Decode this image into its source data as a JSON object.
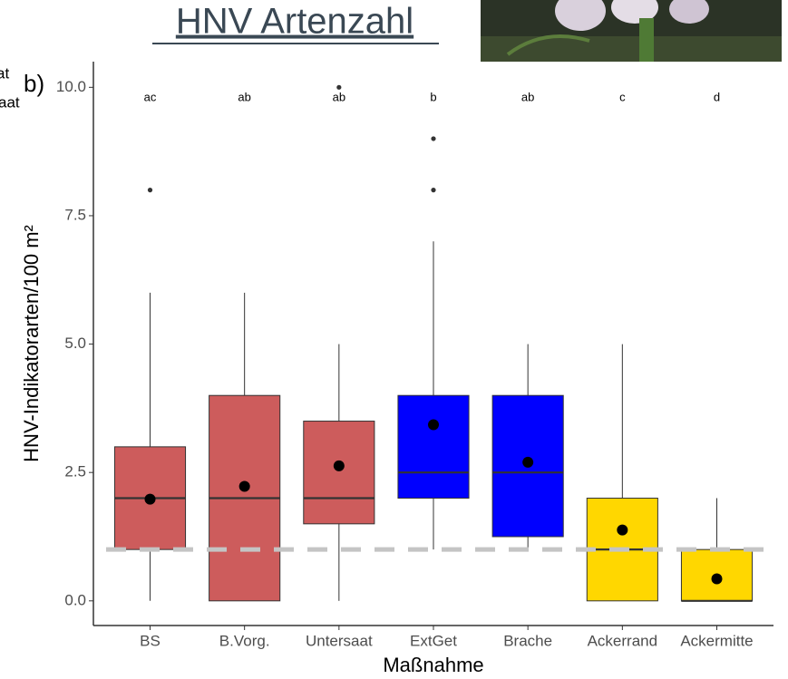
{
  "chart_data": {
    "type": "box",
    "title": "HNV Artenzahl",
    "panel_label": "b)",
    "cut_off_texts": [
      "at",
      "aat"
    ],
    "y_label": "HNV-Indikatorarten/100 m²",
    "x_label": "Maßnahme",
    "ylim": [
      -0.48,
      10.5
    ],
    "yticks": [
      {
        "value": 0,
        "label": "0.0"
      },
      {
        "value": 2.5,
        "label": "2.5"
      },
      {
        "value": 5,
        "label": "5.0"
      },
      {
        "value": 7.5,
        "label": "7.5"
      },
      {
        "value": 10,
        "label": "10.0"
      }
    ],
    "categories": [
      "BS",
      "B.Vorg.",
      "Untersaat",
      "ExtGet",
      "Brache",
      "Ackerrand",
      "Ackermitte"
    ],
    "boxes": [
      {
        "whisker_low": 0,
        "q1": 1,
        "median": 2,
        "q3": 3,
        "whisker_high": 6,
        "mean": 1.98,
        "outliers": [
          8
        ],
        "letter": "ac",
        "color": "#cd5c5c"
      },
      {
        "whisker_low": 0,
        "q1": 0,
        "median": 2,
        "q3": 4,
        "whisker_high": 6,
        "mean": 2.23,
        "outliers": [],
        "letter": "ab",
        "color": "#cd5c5c"
      },
      {
        "whisker_low": 0,
        "q1": 1.5,
        "median": 2,
        "q3": 3.5,
        "whisker_high": 5,
        "mean": 2.63,
        "outliers": [
          10
        ],
        "letter": "ab",
        "color": "#cd5c5c"
      },
      {
        "whisker_low": 1,
        "q1": 2,
        "median": 2.5,
        "q3": 4,
        "whisker_high": 7,
        "mean": 3.43,
        "outliers": [
          8,
          9
        ],
        "letter": "b",
        "color": "#0000ff"
      },
      {
        "whisker_low": 1,
        "q1": 1.25,
        "median": 2.5,
        "q3": 4,
        "whisker_high": 5,
        "mean": 2.7,
        "outliers": [],
        "letter": "ab",
        "color": "#0000ff"
      },
      {
        "whisker_low": 0,
        "q1": 0,
        "median": 1,
        "q3": 2,
        "whisker_high": 5,
        "mean": 1.38,
        "outliers": [],
        "letter": "c",
        "color": "#ffd700"
      },
      {
        "whisker_low": 0,
        "q1": 0,
        "median": 0,
        "q3": 1,
        "whisker_high": 2,
        "mean": 0.43,
        "outliers": [],
        "letter": "d",
        "color": "#ffd700"
      }
    ],
    "reference_line": {
      "value": 1,
      "color": "#c4c4c4",
      "dashed": true
    }
  }
}
